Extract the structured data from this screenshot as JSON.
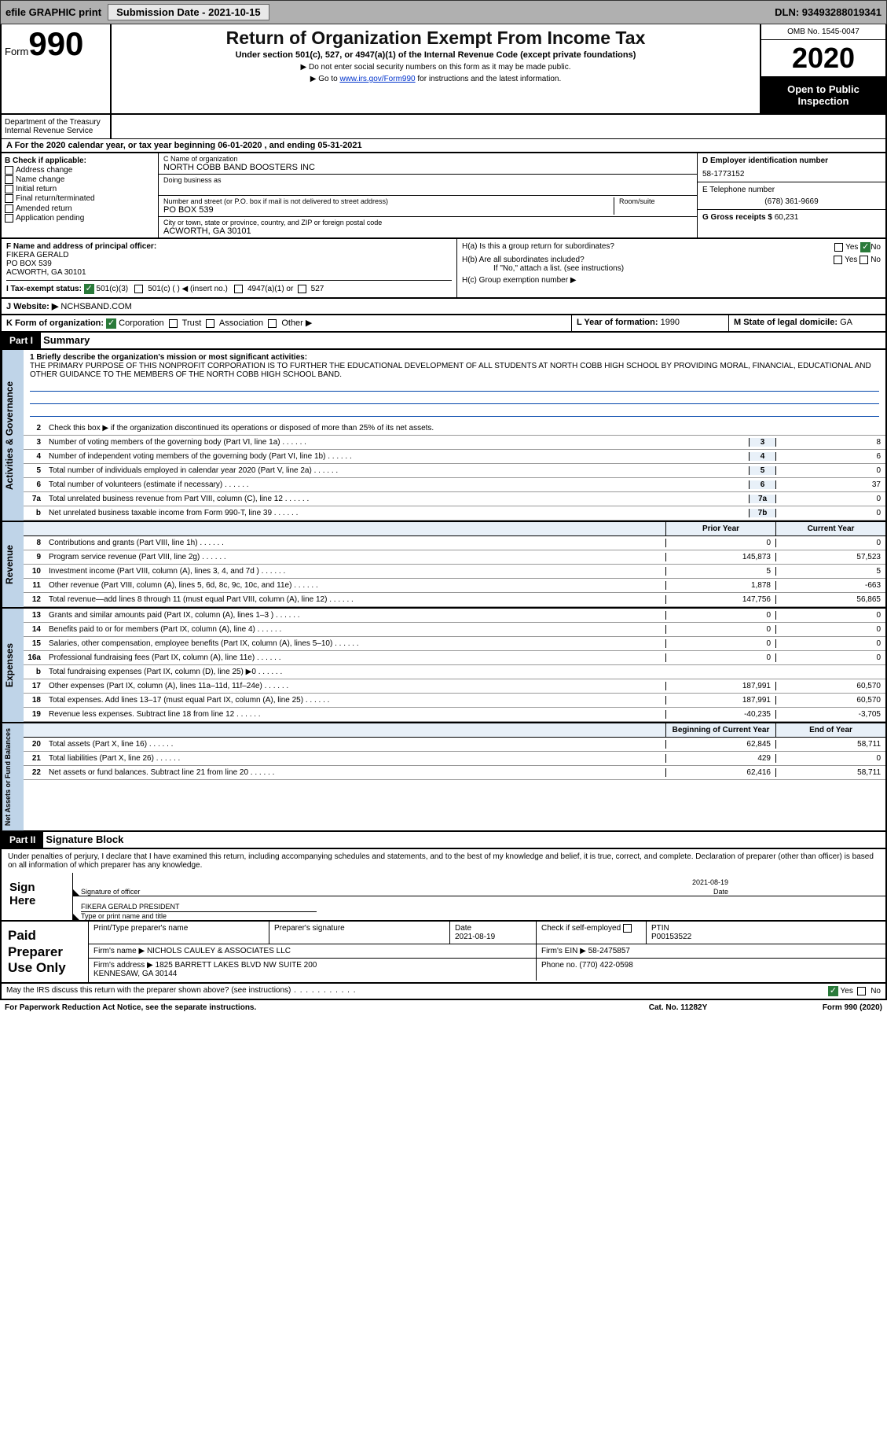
{
  "topbar": {
    "efile": "efile GRAPHIC print",
    "submission_label": "Submission Date - 2021-10-15",
    "dln": "DLN: 93493288019341"
  },
  "header": {
    "form_prefix": "Form",
    "form_number": "990",
    "title": "Return of Organization Exempt From Income Tax",
    "subtitle": "Under section 501(c), 527, or 4947(a)(1) of the Internal Revenue Code (except private foundations)",
    "note1": "Do not enter social security numbers on this form as it may be made public.",
    "note2_pre": "Go to ",
    "note2_link": "www.irs.gov/Form990",
    "note2_post": " for instructions and the latest information.",
    "dept": "Department of the Treasury\nInternal Revenue Service",
    "omb": "OMB No. 1545-0047",
    "year": "2020",
    "open": "Open to Public Inspection"
  },
  "period": {
    "line": "A For the 2020 calendar year, or tax year beginning 06-01-2020    , and ending 05-31-2021"
  },
  "section_b": {
    "title": "B Check if applicable:",
    "items": [
      "Address change",
      "Name change",
      "Initial return",
      "Final return/terminated",
      "Amended return",
      "Application pending"
    ]
  },
  "section_c": {
    "name_lbl": "C Name of organization",
    "name": "NORTH COBB BAND BOOSTERS INC",
    "dba_lbl": "Doing business as",
    "street_lbl": "Number and street (or P.O. box if mail is not delivered to street address)",
    "room_lbl": "Room/suite",
    "street": "PO BOX 539",
    "city_lbl": "City or town, state or province, country, and ZIP or foreign postal code",
    "city": "ACWORTH, GA   30101"
  },
  "section_d": {
    "ein_lbl": "D Employer identification number",
    "ein": "58-1773152",
    "phone_lbl": "E Telephone number",
    "phone": "(678) 361-9669",
    "gross_lbl": "G Gross receipts $",
    "gross": "60,231"
  },
  "section_f": {
    "lbl": "F  Name and address of principal officer:",
    "name": "FIKERA GERALD",
    "addr1": "PO BOX 539",
    "addr2": "ACWORTH, GA   30101"
  },
  "section_h": {
    "a": "H(a)  Is this a group return for subordinates?",
    "b": "H(b)  Are all subordinates included?",
    "b_note": "If \"No,\" attach a list. (see instructions)",
    "c": "H(c)  Group exemption number ▶",
    "yes": "Yes",
    "no": "No"
  },
  "row_i": {
    "lbl": "I   Tax-exempt status:",
    "o1": "501(c)(3)",
    "o2": "501(c) (   ) ◀ (insert no.)",
    "o3": "4947(a)(1) or",
    "o4": "527"
  },
  "row_j": {
    "lbl": "J   Website: ▶",
    "val": "NCHSBAND.COM"
  },
  "row_k": {
    "lbl": "K Form of organization:",
    "o1": "Corporation",
    "o2": "Trust",
    "o3": "Association",
    "o4": "Other ▶"
  },
  "row_l": {
    "lbl": "L Year of formation:",
    "val": "1990"
  },
  "row_m": {
    "lbl": "M State of legal domicile:",
    "val": "GA"
  },
  "part1": {
    "hdr": "Part I",
    "title": "Summary",
    "line1_lbl": "1  Briefly describe the organization's mission or most significant activities:",
    "mission": "THE PRIMARY PURPOSE OF THIS NONPROFIT CORPORATION IS TO FURTHER THE EDUCATIONAL DEVELOPMENT OF ALL STUDENTS AT NORTH COBB HIGH SCHOOL BY PROVIDING MORAL, FINANCIAL, EDUCATIONAL AND OTHER GUIDANCE TO THE MEMBERS OF THE NORTH COBB HIGH SCHOOL BAND.",
    "line2": "Check this box ▶        if the organization discontinued its operations or disposed of more than 25% of its net assets."
  },
  "sides": {
    "gov": "Activities & Governance",
    "rev": "Revenue",
    "exp": "Expenses",
    "net": "Net Assets or Fund Balances"
  },
  "gov_rows": [
    {
      "n": "3",
      "d": "Number of voting members of the governing body (Part VI, line 1a)",
      "c": "3",
      "v": "8"
    },
    {
      "n": "4",
      "d": "Number of independent voting members of the governing body (Part VI, line 1b)",
      "c": "4",
      "v": "6"
    },
    {
      "n": "5",
      "d": "Total number of individuals employed in calendar year 2020 (Part V, line 2a)",
      "c": "5",
      "v": "0"
    },
    {
      "n": "6",
      "d": "Total number of volunteers (estimate if necessary)",
      "c": "6",
      "v": "37"
    },
    {
      "n": "7a",
      "d": "Total unrelated business revenue from Part VIII, column (C), line 12",
      "c": "7a",
      "v": "0"
    },
    {
      "n": "b",
      "d": "Net unrelated business taxable income from Form 990-T, line 39",
      "c": "7b",
      "v": "0"
    }
  ],
  "col_hdrs": {
    "prior": "Prior Year",
    "current": "Current Year",
    "boy": "Beginning of Current Year",
    "eoy": "End of Year"
  },
  "rev_rows": [
    {
      "n": "8",
      "d": "Contributions and grants (Part VIII, line 1h)",
      "p": "0",
      "c": "0"
    },
    {
      "n": "9",
      "d": "Program service revenue (Part VIII, line 2g)",
      "p": "145,873",
      "c": "57,523"
    },
    {
      "n": "10",
      "d": "Investment income (Part VIII, column (A), lines 3, 4, and 7d )",
      "p": "5",
      "c": "5"
    },
    {
      "n": "11",
      "d": "Other revenue (Part VIII, column (A), lines 5, 6d, 8c, 9c, 10c, and 11e)",
      "p": "1,878",
      "c": "-663"
    },
    {
      "n": "12",
      "d": "Total revenue—add lines 8 through 11 (must equal Part VIII, column (A), line 12)",
      "p": "147,756",
      "c": "56,865"
    }
  ],
  "exp_rows": [
    {
      "n": "13",
      "d": "Grants and similar amounts paid (Part IX, column (A), lines 1–3 )",
      "p": "0",
      "c": "0"
    },
    {
      "n": "14",
      "d": "Benefits paid to or for members (Part IX, column (A), line 4)",
      "p": "0",
      "c": "0"
    },
    {
      "n": "15",
      "d": "Salaries, other compensation, employee benefits (Part IX, column (A), lines 5–10)",
      "p": "0",
      "c": "0"
    },
    {
      "n": "16a",
      "d": "Professional fundraising fees (Part IX, column (A), line 11e)",
      "p": "0",
      "c": "0"
    },
    {
      "n": "b",
      "d": "Total fundraising expenses (Part IX, column (D), line 25) ▶0",
      "p": "",
      "c": ""
    },
    {
      "n": "17",
      "d": "Other expenses (Part IX, column (A), lines 11a–11d, 11f–24e)",
      "p": "187,991",
      "c": "60,570"
    },
    {
      "n": "18",
      "d": "Total expenses. Add lines 13–17 (must equal Part IX, column (A), line 25)",
      "p": "187,991",
      "c": "60,570"
    },
    {
      "n": "19",
      "d": "Revenue less expenses. Subtract line 18 from line 12",
      "p": "-40,235",
      "c": "-3,705"
    }
  ],
  "net_rows": [
    {
      "n": "20",
      "d": "Total assets (Part X, line 16)",
      "p": "62,845",
      "c": "58,711"
    },
    {
      "n": "21",
      "d": "Total liabilities (Part X, line 26)",
      "p": "429",
      "c": "0"
    },
    {
      "n": "22",
      "d": "Net assets or fund balances. Subtract line 21 from line 20",
      "p": "62,416",
      "c": "58,711"
    }
  ],
  "part2": {
    "hdr": "Part II",
    "title": "Signature Block",
    "decl": "Under penalties of perjury, I declare that I have examined this return, including accompanying schedules and statements, and to the best of my knowledge and belief, it is true, correct, and complete. Declaration of preparer (other than officer) is based on all information of which preparer has any knowledge."
  },
  "sign": {
    "left": "Sign Here",
    "sig_lbl": "Signature of officer",
    "date": "2021-08-19",
    "date_lbl": "Date",
    "name": "FIKERA GERALD  PRESIDENT",
    "name_lbl": "Type or print name and title"
  },
  "paid": {
    "left": "Paid Preparer Use Only",
    "print_lbl": "Print/Type preparer's name",
    "sig_lbl": "Preparer's signature",
    "date_lbl": "Date",
    "date": "2021-08-19",
    "check_lbl": "Check         if self-employed",
    "ptin_lbl": "PTIN",
    "ptin": "P00153522",
    "firm_name_lbl": "Firm's name    ▶",
    "firm_name": "NICHOLS CAULEY & ASSOCIATES LLC",
    "firm_ein_lbl": "Firm's EIN ▶",
    "firm_ein": "58-2475857",
    "firm_addr_lbl": "Firm's address ▶",
    "firm_addr": "1825 BARRETT LAKES BLVD NW SUITE 200\nKENNESAW, GA   30144",
    "phone_lbl": "Phone no.",
    "phone": "(770) 422-0598"
  },
  "discuss": {
    "q": "May the IRS discuss this return with the preparer shown above? (see instructions)",
    "yes": "Yes",
    "no": "No"
  },
  "footer": {
    "pra": "For Paperwork Reduction Act Notice, see the separate instructions.",
    "cat": "Cat. No. 11282Y",
    "form": "Form 990 (2020)"
  }
}
